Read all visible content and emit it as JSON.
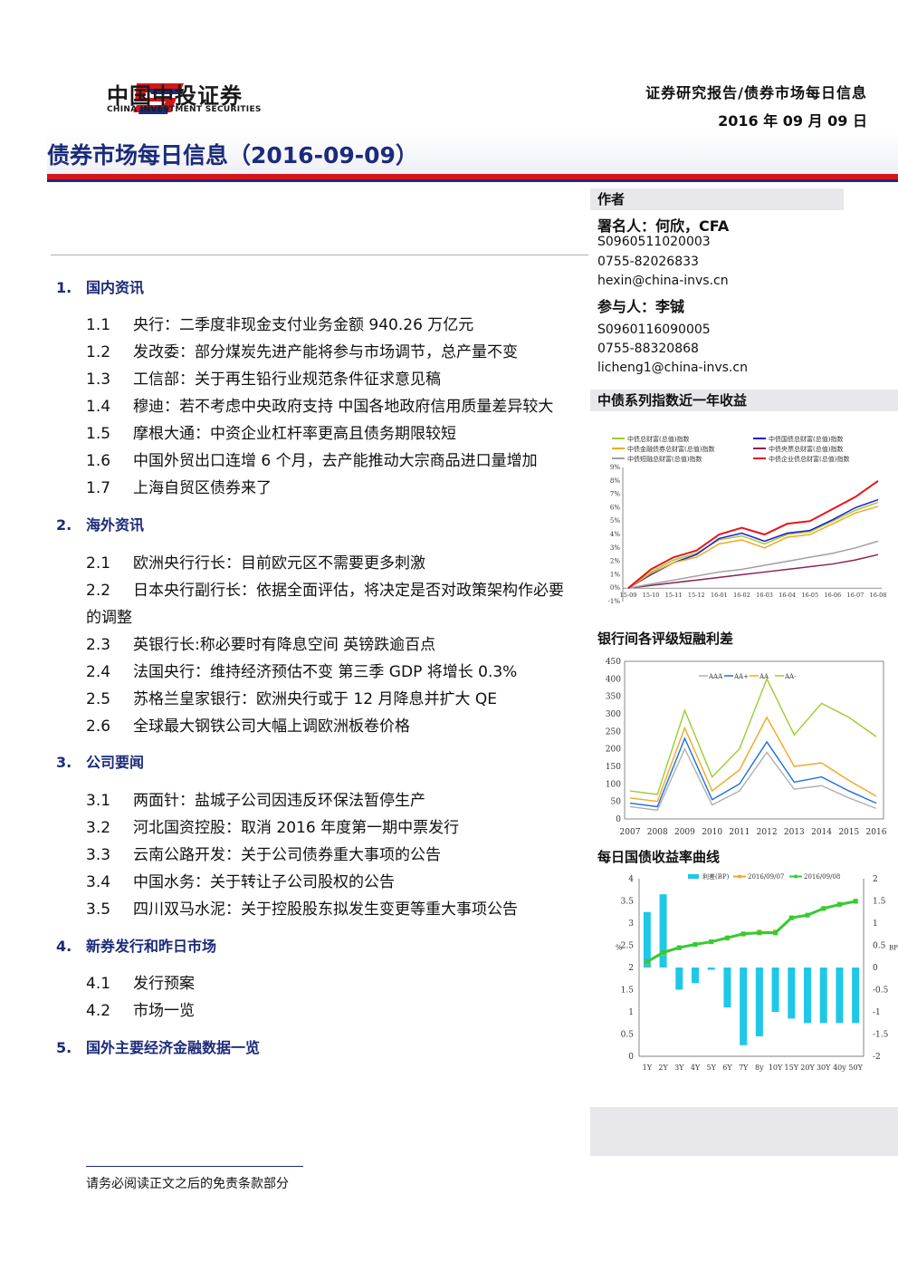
{
  "header": {
    "brand_name": "中国中投证券",
    "brand_name_en": "CHINA INVESTMENT SECURITIES",
    "report_type": "证券研究报告/债券市场每日信息",
    "date": "2016 年 09 月 09 日"
  },
  "page_title": "债券市场每日信息（2016-09-09）",
  "colors": {
    "accent_blue": "#1c2b7a",
    "accent_red": "#d8141b",
    "sidebar_gray": "#e8e8ec"
  },
  "toc": {
    "sections": [
      {
        "num": "1.",
        "title": "国内资讯",
        "items": [
          {
            "num": "1.1",
            "text": "央行：二季度非现金支付业务金额 940.26 万亿元"
          },
          {
            "num": "1.2",
            "text": "发改委：部分煤炭先进产能将参与市场调节，总产量不变"
          },
          {
            "num": "1.3",
            "text": "工信部：关于再生铅行业规范条件征求意见稿"
          },
          {
            "num": "1.4",
            "text": "穆迪：若不考虑中央政府支持  中国各地政府信用质量差异较大"
          },
          {
            "num": "1.5",
            "text": "摩根大通：中资企业杠杆率更高且债务期限较短"
          },
          {
            "num": "1.6",
            "text": "中国外贸出口连增 6 个月，去产能推动大宗商品进口量增加"
          },
          {
            "num": "1.7",
            "text": "上海自贸区债券来了"
          }
        ]
      },
      {
        "num": "2.",
        "title": "海外资讯",
        "items": [
          {
            "num": "2.1",
            "text": "欧洲央行行长：目前欧元区不需要更多刺激"
          },
          {
            "num": "2.2",
            "text": "日本央行副行长：依据全面评估，将决定是否对政策架构作必要",
            "cont": "的调整"
          },
          {
            "num": "2.3",
            "text": "英银行长:称必要时有降息空间  英镑跌逾百点"
          },
          {
            "num": "2.4",
            "text": "法国央行：维持经济预估不变  第三季 GDP 将增长 0.3%"
          },
          {
            "num": "2.5",
            "text": "苏格兰皇家银行：欧洲央行或于 12 月降息并扩大 QE"
          },
          {
            "num": "2.6",
            "text": "全球最大钢铁公司大幅上调欧洲板卷价格"
          }
        ]
      },
      {
        "num": "3.",
        "title": "公司要闻",
        "items": [
          {
            "num": "3.1",
            "text": "两面针：盐城子公司因违反环保法暂停生产"
          },
          {
            "num": "3.2",
            "text": "河北国资控股：取消 2016 年度第一期中票发行"
          },
          {
            "num": "3.3",
            "text": "云南公路开发：关于公司债券重大事项的公告"
          },
          {
            "num": "3.4",
            "text": "中国水务：关于转让子公司股权的公告"
          },
          {
            "num": "3.5",
            "text": "四川双马水泥：关于控股股东拟发生变更等重大事项公告"
          }
        ]
      },
      {
        "num": "4.",
        "title": "新券发行和昨日市场",
        "items": [
          {
            "num": "4.1",
            "text": "发行预案"
          },
          {
            "num": "4.2",
            "text": "市场一览"
          }
        ]
      },
      {
        "num": "5.",
        "title": "国外主要经济金融数据一览",
        "items": []
      }
    ]
  },
  "sidebar": {
    "author_heading": "作者",
    "author": {
      "label": "署名人：何欣，CFA",
      "license": "S0960511020003",
      "phone": "0755-82026833",
      "email": "hexin@china-invs.cn"
    },
    "participant": {
      "label": "参与人：李铖",
      "license": "S0960116090005",
      "phone": "0755-88320868",
      "email": "licheng1@china-invs.cn"
    }
  },
  "chart_data": [
    {
      "type": "line",
      "title": "中债系列指数近一年收益",
      "legend": [
        "中债总财富(总值)指数",
        "中债国债总财富(总值)指数",
        "中债金融债券总财富(总值)指数",
        "中债央票总财富(总值)指数",
        "中债短融总财富(总值)指数",
        "中债企业债总财富(总值)指数"
      ],
      "legend_placement": "top",
      "x_ticks": [
        "15-09",
        "15-10",
        "15-11",
        "15-12",
        "16-01",
        "16-02",
        "16-03",
        "16-04",
        "16-05",
        "16-06",
        "16-07",
        "16-08"
      ],
      "y_ticks": [
        "-1%",
        "0%",
        "1%",
        "2%",
        "3%",
        "4%",
        "5%",
        "6%",
        "7%",
        "8%",
        "9%"
      ],
      "ylim": [
        -1,
        9
      ],
      "colors": [
        "#9acd32",
        "#1b1bd0",
        "#f5a623",
        "#8b2252",
        "#a0a0a0",
        "#e8141b"
      ],
      "series": [
        {
          "name": "中债总财富(总值)指数",
          "values": [
            0,
            1.2,
            2.1,
            2.6,
            3.6,
            3.9,
            3.3,
            4.0,
            4.2,
            5.0,
            5.8,
            6.4
          ]
        },
        {
          "name": "中债国债总财富(总值)指数",
          "values": [
            0,
            1.0,
            1.9,
            2.5,
            3.7,
            4.1,
            3.5,
            4.1,
            4.3,
            5.1,
            6.0,
            6.6
          ]
        },
        {
          "name": "中债金融债券总财富(总值)指数",
          "values": [
            0,
            1.1,
            1.9,
            2.3,
            3.3,
            3.6,
            3.0,
            3.8,
            4.0,
            4.8,
            5.6,
            6.1
          ]
        },
        {
          "name": "中债央票总财富(总值)指数",
          "values": [
            0,
            0.2,
            0.4,
            0.6,
            0.8,
            1.0,
            1.2,
            1.4,
            1.6,
            1.8,
            2.1,
            2.5
          ]
        },
        {
          "name": "中债短融总财富(总值)指数",
          "values": [
            0,
            0.3,
            0.6,
            0.9,
            1.2,
            1.4,
            1.7,
            2.0,
            2.3,
            2.6,
            3.0,
            3.5
          ]
        },
        {
          "name": "中债企业债总财富(总值)指数",
          "values": [
            0,
            1.4,
            2.3,
            2.8,
            4.0,
            4.5,
            4.0,
            4.8,
            5.0,
            5.9,
            6.8,
            8.0
          ]
        }
      ]
    },
    {
      "type": "line",
      "title": "银行间各评级短融利差",
      "legend": [
        "AAA",
        "AA+",
        "AA",
        "AA-"
      ],
      "legend_placement": "top",
      "x_ticks": [
        "2007",
        "2008",
        "2009",
        "2010",
        "2011",
        "2012",
        "2013",
        "2014",
        "2015",
        "2016"
      ],
      "y_ticks": [
        "0",
        "50",
        "100",
        "150",
        "200",
        "250",
        "300",
        "350",
        "400",
        "450"
      ],
      "ylim": [
        0,
        450
      ],
      "colors": [
        "#b0b0b0",
        "#1b6fe0",
        "#f5a623",
        "#9acd32"
      ],
      "series": [
        {
          "name": "AAA",
          "values": [
            35,
            25,
            200,
            40,
            80,
            190,
            85,
            95,
            60,
            30
          ]
        },
        {
          "name": "AA+",
          "values": [
            45,
            35,
            230,
            55,
            100,
            220,
            105,
            120,
            80,
            45
          ]
        },
        {
          "name": "AA",
          "values": [
            60,
            50,
            260,
            80,
            140,
            290,
            150,
            160,
            110,
            65
          ]
        },
        {
          "name": "AA-",
          "values": [
            80,
            70,
            310,
            120,
            200,
            400,
            240,
            330,
            290,
            235
          ]
        }
      ]
    },
    {
      "type": "bar",
      "title": "每日国债收益率曲线",
      "legend": [
        "利差(BP)",
        "2016/09/07",
        "2016/09/08"
      ],
      "legend_placement": "top",
      "categories": [
        "1Y",
        "2Y",
        "3Y",
        "4Y",
        "5Y",
        "6Y",
        "7Y",
        "8y",
        "10Y",
        "15Y",
        "20Y",
        "30Y",
        "40y",
        "50Y"
      ],
      "y_ticks_left": [
        "0",
        "0.5",
        "1",
        "1.5",
        "2",
        "2.5",
        "3",
        "3.5",
        "4"
      ],
      "ylim_left": [
        0,
        4
      ],
      "y_label_left": "%",
      "y_ticks_right": [
        "-2",
        "-1.5",
        "-1",
        "-0.5",
        "0",
        "0.5",
        "1",
        "1.5",
        "2"
      ],
      "ylim_right": [
        -2,
        2
      ],
      "y_label_right": "BP",
      "colors": [
        "#1ec8e8",
        "#f5a623",
        "#33cc33"
      ],
      "series": [
        {
          "name": "利差(BP)",
          "values": [
            1.25,
            1.65,
            -0.5,
            -0.35,
            -0.05,
            -0.9,
            -1.75,
            -1.55,
            -1.0,
            -1.15,
            -1.25,
            -1.25,
            -1.25,
            -1.25
          ]
        },
        {
          "name": "2016/09/07",
          "values": [
            2.12,
            2.32,
            2.44,
            2.52,
            2.58,
            2.66,
            2.75,
            2.8,
            2.8,
            3.12,
            3.18,
            3.33,
            3.43,
            3.5
          ]
        },
        {
          "name": "2016/09/08",
          "values": [
            2.13,
            2.34,
            2.45,
            2.52,
            2.58,
            2.67,
            2.76,
            2.78,
            2.78,
            3.12,
            3.18,
            3.33,
            3.42,
            3.49
          ]
        }
      ]
    }
  ],
  "footer": {
    "disclaimer": "请务必阅读正文之后的免责条款部分"
  }
}
